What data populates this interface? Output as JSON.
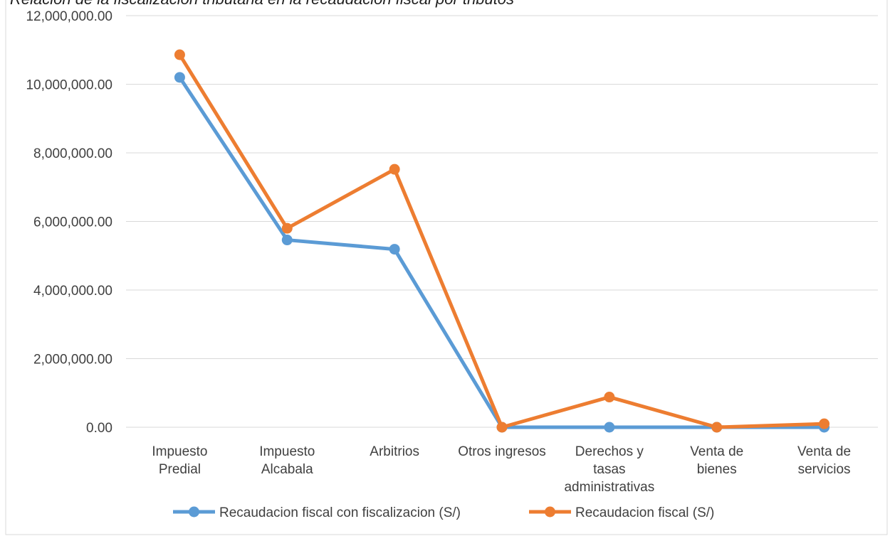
{
  "chart_data": {
    "type": "line",
    "title": "Relacion de la fiscalizacion tributaria en la recaudacion fiscal por tributos",
    "categories": [
      [
        "Impuesto",
        "Predial"
      ],
      [
        "Impuesto",
        "Alcabala"
      ],
      [
        "Arbitrios"
      ],
      [
        "Otros ingresos"
      ],
      [
        "Derechos y",
        "tasas",
        "administrativas"
      ],
      [
        "Venta de",
        "bienes"
      ],
      [
        "Venta de",
        "servicios"
      ]
    ],
    "series": [
      {
        "name": "Recaudacion fiscal con fiscalizacion (S/)",
        "color": "#5b9bd5",
        "values": [
          10200000,
          5460000,
          5190000,
          0,
          0,
          0,
          0
        ]
      },
      {
        "name": "Recaudacion fiscal (S/)",
        "color": "#ed7d31",
        "values": [
          10860000,
          5800000,
          7520000,
          0,
          880000,
          0,
          100000
        ]
      }
    ],
    "ylim": [
      0,
      12000000
    ],
    "yticks": [
      "0.00",
      "2,000,000.00",
      "4,000,000.00",
      "6,000,000.00",
      "8,000,000.00",
      "10,000,000.00",
      "12,000,000.00"
    ],
    "ytick_values": [
      0,
      2000000,
      4000000,
      6000000,
      8000000,
      10000000,
      12000000
    ],
    "grid": true,
    "legend": "bottom"
  }
}
